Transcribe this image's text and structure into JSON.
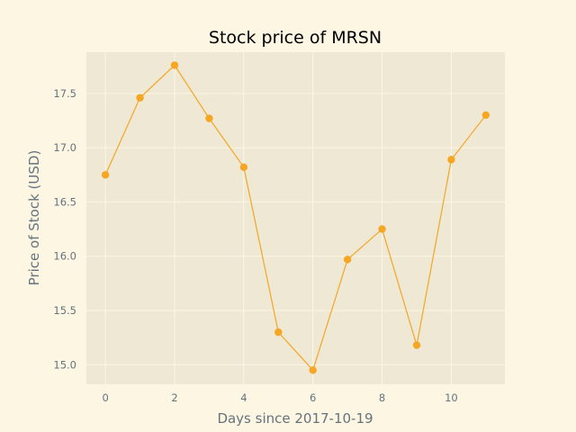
{
  "chart_data": {
    "type": "line",
    "title": "Stock price of MRSN",
    "xlabel": "Days since 2017-10-19",
    "ylabel": "Price of Stock (USD)",
    "x": [
      0,
      1,
      2,
      3,
      4,
      5,
      6,
      7,
      8,
      9,
      10,
      11
    ],
    "series": [
      {
        "values": [
          16.75,
          17.46,
          17.76,
          17.27,
          16.82,
          15.3,
          14.95,
          15.97,
          16.25,
          15.18,
          16.89,
          17.3
        ]
      }
    ],
    "xticks": [
      "0",
      "2",
      "4",
      "6",
      "8",
      "10"
    ],
    "yticks": [
      "15.0",
      "15.5",
      "16.0",
      "16.5",
      "17.0",
      "17.5"
    ],
    "xlim": [
      -0.55,
      11.55
    ],
    "ylim": [
      14.82,
      17.88
    ],
    "grid": true,
    "colors": {
      "page_background": "#fdf6e3",
      "plot_background": "#eee8d5",
      "grid": "#fdf6e3",
      "line": "#f5a623",
      "marker": "#f5a623"
    }
  }
}
